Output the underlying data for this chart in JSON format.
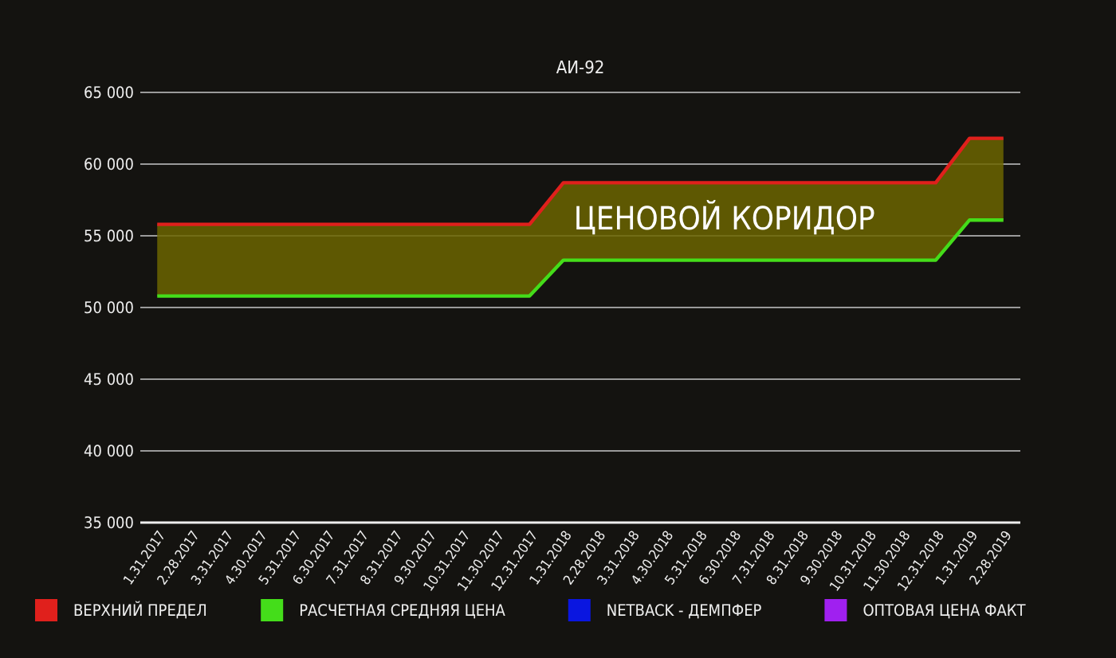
{
  "chart_data": {
    "type": "line",
    "title": "АИ-92",
    "categories": [
      "1.31.2017",
      "2.28.2017",
      "3.31.2017",
      "4.30.2017",
      "5.31.2017",
      "6.30.2017",
      "7.31.2017",
      "8.31.2017",
      "9.30.2017",
      "10.31.2017",
      "11.30.2017",
      "12.31.2017",
      "1.31.2018",
      "2.28.2018",
      "3.31.2018",
      "4.30.2018",
      "5.31.2018",
      "6.30.2018",
      "7.31.2018",
      "8.31.2018",
      "9.30.2018",
      "10.31.2018",
      "11.30.2018",
      "12.31.2018",
      "1.31.2019",
      "2.28.2019"
    ],
    "series": [
      {
        "name": "ВЕРХНИЙ ПРЕДЕЛ",
        "color": "#e0201c",
        "values": [
          55800,
          55800,
          55800,
          55800,
          55800,
          55800,
          55800,
          55800,
          55800,
          55800,
          55800,
          55800,
          58700,
          58700,
          58700,
          58700,
          58700,
          58700,
          58700,
          58700,
          58700,
          58700,
          58700,
          58700,
          61800,
          61800
        ]
      },
      {
        "name": "РАСЧЕТНАЯ СРЕДНЯЯ ЦЕНА",
        "color": "#44dd1a",
        "values": [
          50800,
          50800,
          50800,
          50800,
          50800,
          50800,
          50800,
          50800,
          50800,
          50800,
          50800,
          50800,
          53300,
          53300,
          53300,
          53300,
          53300,
          53300,
          53300,
          53300,
          53300,
          53300,
          53300,
          53300,
          56100,
          56100
        ]
      },
      {
        "name": "NETBACK - ДЕМПФЕР",
        "color": "#0a16e0",
        "values": [
          null,
          null,
          null,
          null,
          null,
          null,
          null,
          null,
          null,
          null,
          null,
          null,
          null,
          null,
          null,
          null,
          null,
          null,
          null,
          null,
          null,
          null,
          null,
          null,
          null,
          null
        ]
      },
      {
        "name": "ОПТОВАЯ ЦЕНА ФАКТ",
        "color": "#a020f0",
        "values": [
          null,
          null,
          null,
          null,
          null,
          null,
          null,
          null,
          null,
          null,
          null,
          null,
          null,
          null,
          null,
          null,
          null,
          null,
          null,
          null,
          null,
          null,
          null,
          null,
          null,
          null
        ]
      }
    ],
    "ylim": [
      35000,
      65000
    ],
    "yticks": [
      {
        "value": 35000,
        "label": "35 000"
      },
      {
        "value": 40000,
        "label": "40 000"
      },
      {
        "value": 45000,
        "label": "45 000"
      },
      {
        "value": 50000,
        "label": "50 000"
      },
      {
        "value": 55000,
        "label": "55 000"
      },
      {
        "value": 60000,
        "label": "60 000"
      },
      {
        "value": 65000,
        "label": "65 000"
      }
    ],
    "grid": "y",
    "legend": "bottom",
    "marker": "none",
    "line_style": "solid",
    "annotations": [
      "ЦЕНОВОЙ КОРИДОР"
    ]
  }
}
